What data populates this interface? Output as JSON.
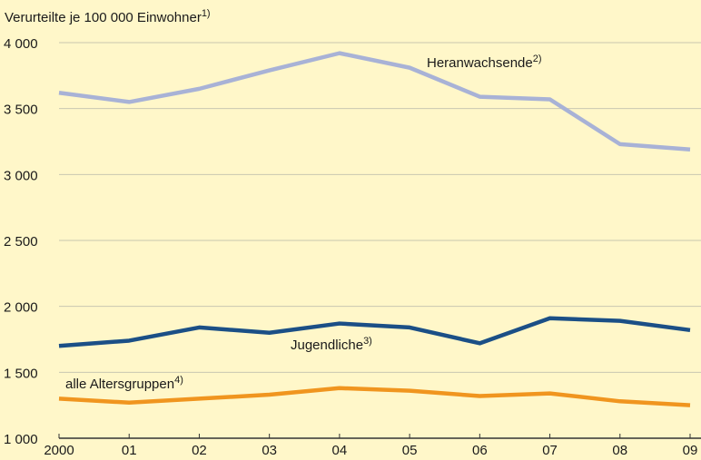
{
  "chart_data": {
    "type": "line",
    "y_label": "Verurteilte je 100 000 Einwohner",
    "y_label_footnote": "1)",
    "categories": [
      "2000",
      "01",
      "02",
      "03",
      "04",
      "05",
      "06",
      "07",
      "08",
      "09"
    ],
    "series": [
      {
        "name": "Heranwachsende",
        "footnote": "2)",
        "color": "#a8b2d6",
        "values": [
          3620,
          3550,
          3650,
          3790,
          3920,
          3810,
          3590,
          3570,
          3230,
          3190
        ]
      },
      {
        "name": "Jugendliche",
        "footnote": "3)",
        "color": "#1b4f86",
        "values": [
          1700,
          1740,
          1840,
          1800,
          1870,
          1840,
          1720,
          1910,
          1890,
          1820
        ]
      },
      {
        "name": "alle Altersgruppen",
        "footnote": "4)",
        "color": "#f0951f",
        "values": [
          1300,
          1270,
          1300,
          1330,
          1380,
          1360,
          1320,
          1340,
          1280,
          1250
        ]
      }
    ],
    "ylim": [
      1000,
      4000
    ],
    "yticks": [
      {
        "value": 1000,
        "label": "1 000"
      },
      {
        "value": 1500,
        "label": "1 500"
      },
      {
        "value": 2000,
        "label": "2 000"
      },
      {
        "value": 2500,
        "label": "2 500"
      },
      {
        "value": 3000,
        "label": "3 000"
      },
      {
        "value": 3500,
        "label": "3 500"
      },
      {
        "value": 4000,
        "label": "4 000"
      }
    ],
    "grid": true
  }
}
